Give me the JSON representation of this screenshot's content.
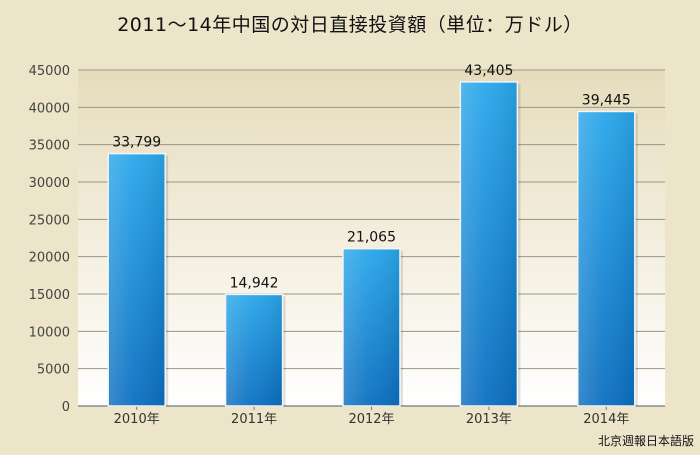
{
  "chart_data": {
    "type": "bar",
    "title": "2011～14年中国の対日直接投資額（単位：万ドル）",
    "categories": [
      "2010年",
      "2011年",
      "2012年",
      "2013年",
      "2014年"
    ],
    "values": [
      33799,
      14942,
      21065,
      43405,
      39445
    ],
    "data_labels": [
      "33,799",
      "14,942",
      "21,065",
      "43,405",
      "39,445"
    ],
    "yticks": [
      "0",
      "5000",
      "10000",
      "15000",
      "20000",
      "25000",
      "30000",
      "35000",
      "40000",
      "45000"
    ],
    "ylim": [
      0,
      45000
    ],
    "xlabel": "",
    "ylabel": "",
    "grid": true,
    "legend": "none",
    "colors": {
      "bar_top": "#2aa7ea",
      "bar_bottom": "#0c6fc0",
      "grid": "#9a9680",
      "bg_top": "#e6dcbc",
      "bg_bottom": "#ffffff"
    }
  },
  "source": "北京週報日本語版"
}
